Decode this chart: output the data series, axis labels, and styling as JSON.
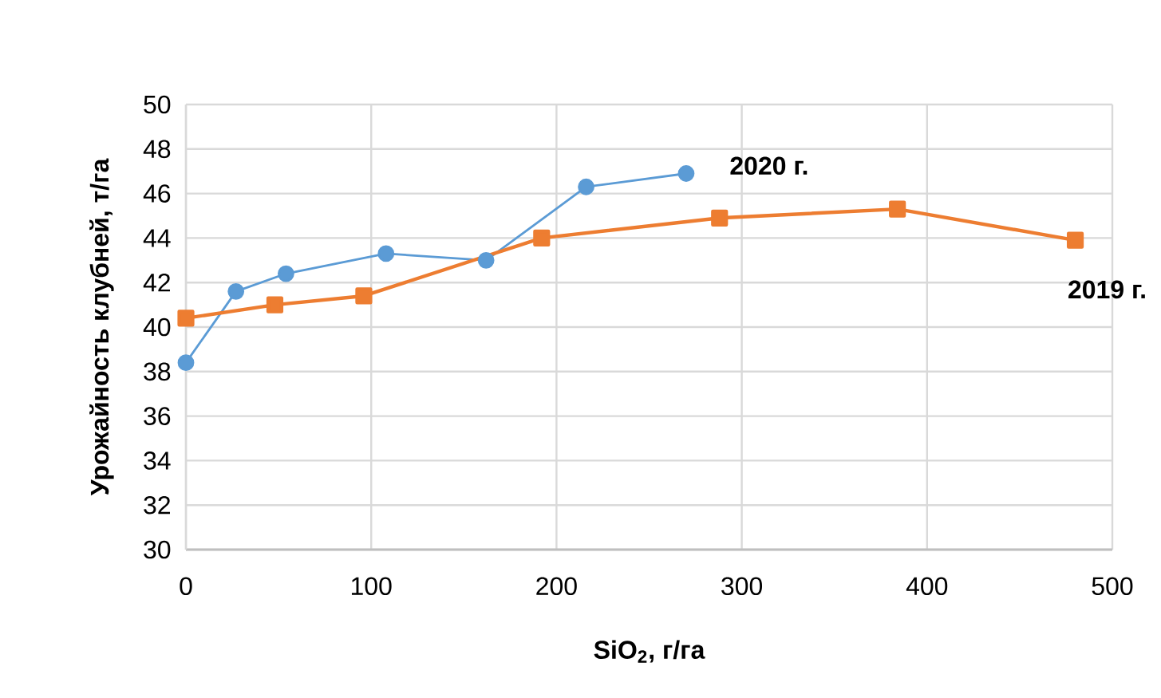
{
  "chart_data": {
    "type": "line",
    "xlabel": "SiO$_{2}$, г/га",
    "ylabel": "Урожайность клубней, т/га",
    "xlim": [
      0,
      500
    ],
    "xticks": [
      0,
      100,
      200,
      300,
      400,
      500
    ],
    "ylim": [
      30,
      50
    ],
    "yticks": [
      30,
      32,
      34,
      36,
      38,
      40,
      42,
      44,
      46,
      48,
      50
    ],
    "grid": true,
    "series": [
      {
        "name": "2020 г.",
        "color": "#5b9bd5",
        "marker": "circle",
        "x": [
          0,
          27,
          54,
          108,
          162,
          216,
          270
        ],
        "values": [
          38.4,
          41.6,
          42.4,
          43.3,
          43.0,
          46.3,
          46.9
        ]
      },
      {
        "name": "2019 г.",
        "color": "#ed7d31",
        "marker": "square",
        "x": [
          0,
          48,
          96,
          192,
          288,
          384,
          480
        ],
        "values": [
          40.4,
          41.0,
          41.4,
          44.0,
          44.9,
          45.3,
          43.9
        ]
      }
    ]
  }
}
